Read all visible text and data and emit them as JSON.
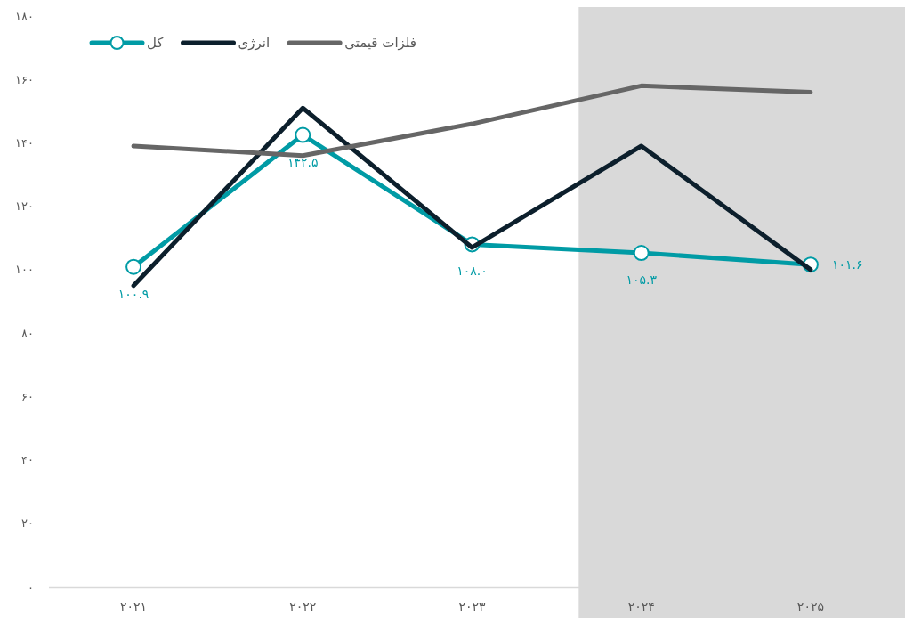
{
  "chart_data": {
    "type": "line",
    "categories": [
      "۲۰۲۱",
      "۲۰۲۲",
      "۲۰۲۳",
      "۲۰۲۴",
      "۲۰۲۵"
    ],
    "series": [
      {
        "name": "کل",
        "color": "#009ba5",
        "marker": "circle",
        "values": [
          100.9,
          142.5,
          108.0,
          105.3,
          101.6
        ],
        "value_labels": [
          "۱۰۰.۹",
          "۱۴۲.۵",
          "۱۰۸.۰",
          "۱۰۵.۳",
          "۱۰۱.۶"
        ]
      },
      {
        "name": "انرژی",
        "color": "#0c1f2c",
        "marker": "none",
        "values": [
          95,
          151,
          107,
          139,
          100
        ]
      },
      {
        "name": "فلزات قیمتی",
        "color": "#666666",
        "marker": "none",
        "values": [
          139,
          136,
          146,
          158,
          156
        ]
      }
    ],
    "ylim": [
      0,
      180
    ],
    "yticks": [
      {
        "value": 0,
        "label": "۰"
      },
      {
        "value": 20,
        "label": "۲۰"
      },
      {
        "value": 40,
        "label": "۴۰"
      },
      {
        "value": 60,
        "label": "۶۰"
      },
      {
        "value": 80,
        "label": "۸۰"
      },
      {
        "value": 100,
        "label": "۱۰۰"
      },
      {
        "value": 120,
        "label": "۱۲۰"
      },
      {
        "value": 140,
        "label": "۱۴۰"
      },
      {
        "value": 160,
        "label": "۱۶۰"
      },
      {
        "value": 180,
        "label": "۱۸۰"
      }
    ],
    "bands": [
      {
        "axis": "x",
        "from": "۲۰۲۴",
        "to": "۲۰۲۵",
        "color": "#d9d9d9"
      }
    ],
    "grid": false,
    "legend": "top left"
  }
}
